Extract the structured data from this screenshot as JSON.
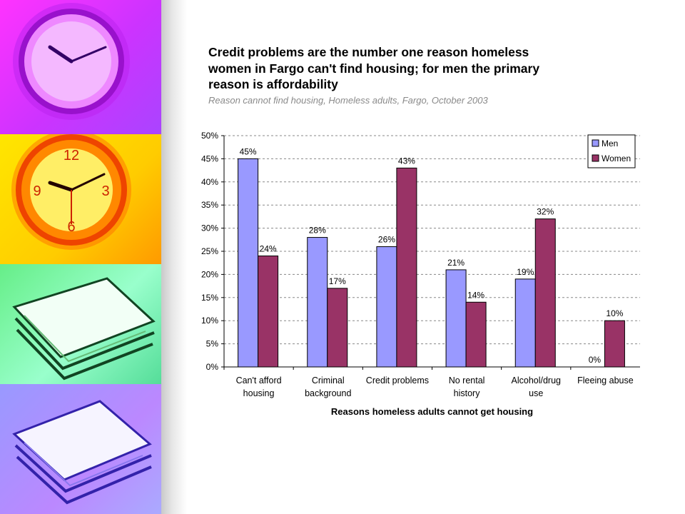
{
  "title_lines": [
    "Credit problems are the number one reason homeless",
    "women in Fargo can't find housing; for men the primary",
    "reason is affordability"
  ],
  "subtitle": "Reason cannot find housing, Homeless adults, Fargo, October 2003",
  "chart_data": {
    "type": "bar",
    "categories": [
      [
        "Can't afford",
        "housing"
      ],
      [
        "Criminal",
        "background"
      ],
      [
        "Credit problems"
      ],
      [
        "No rental",
        "history"
      ],
      [
        "Alcohol/drug",
        "use"
      ],
      [
        "Fleeing abuse"
      ]
    ],
    "series": [
      {
        "name": "Men",
        "color": "#9999ff",
        "values": [
          45,
          28,
          26,
          21,
          19,
          0
        ],
        "labels": [
          "45%",
          "28%",
          "26%",
          "21%",
          "19%",
          "0%"
        ]
      },
      {
        "name": "Women",
        "color": "#993366",
        "values": [
          24,
          17,
          43,
          14,
          32,
          10
        ],
        "labels": [
          "24%",
          "17%",
          "43%",
          "14%",
          "32%",
          "10%"
        ]
      }
    ],
    "y_ticks": [
      "0%",
      "5%",
      "10%",
      "15%",
      "20%",
      "25%",
      "30%",
      "35%",
      "40%",
      "45%",
      "50%"
    ],
    "ylim": [
      0,
      50
    ],
    "xlabel": "Reasons homeless adults cannot get housing",
    "ylabel": "",
    "grid": true,
    "legend_position": "top-right"
  }
}
